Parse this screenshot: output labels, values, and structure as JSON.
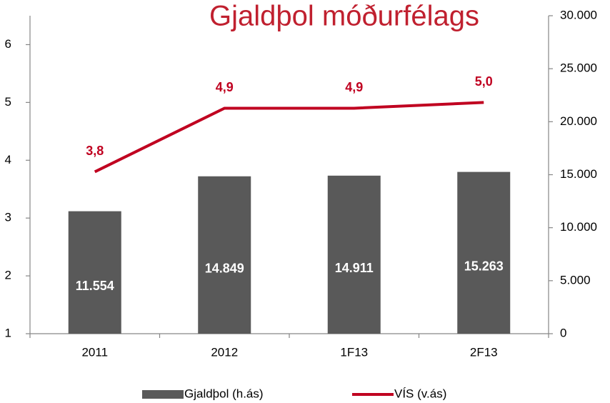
{
  "chart_data": {
    "type": "bar",
    "title": "Gjaldþol móðurfélags",
    "categories": [
      "2011",
      "2012",
      "1F13",
      "2F13"
    ],
    "series": [
      {
        "name": "Gjaldþol (h.ás)",
        "color": "#595959",
        "axis": "y2",
        "values": [
          11554,
          14849,
          14911,
          15263
        ],
        "value_labels": [
          "11.554",
          "14.849",
          "14.911",
          "15.263"
        ]
      },
      {
        "name": "VÍS (v.ás)",
        "type": "line",
        "color": "#c00020",
        "values": [
          3.8,
          4.9,
          4.9,
          5.0
        ],
        "value_labels": [
          "3,8",
          "4,9",
          "4,9",
          "5,0"
        ]
      }
    ],
    "ylim": [
      1,
      6.5
    ],
    "yticks": [
      1,
      2,
      3,
      4,
      5,
      6
    ],
    "y2lim": [
      0,
      30000
    ],
    "y2ticks": [
      0,
      {
        "value": 5000,
        "label": "5.000"
      },
      {
        "value": 10000,
        "label": "10.000"
      },
      {
        "value": 15000,
        "label": "15.000"
      },
      {
        "value": 20000,
        "label": "20.000"
      },
      {
        "value": 25000,
        "label": "25.000"
      },
      {
        "value": 30000,
        "label": "30.000"
      }
    ],
    "legend": "bottom"
  }
}
